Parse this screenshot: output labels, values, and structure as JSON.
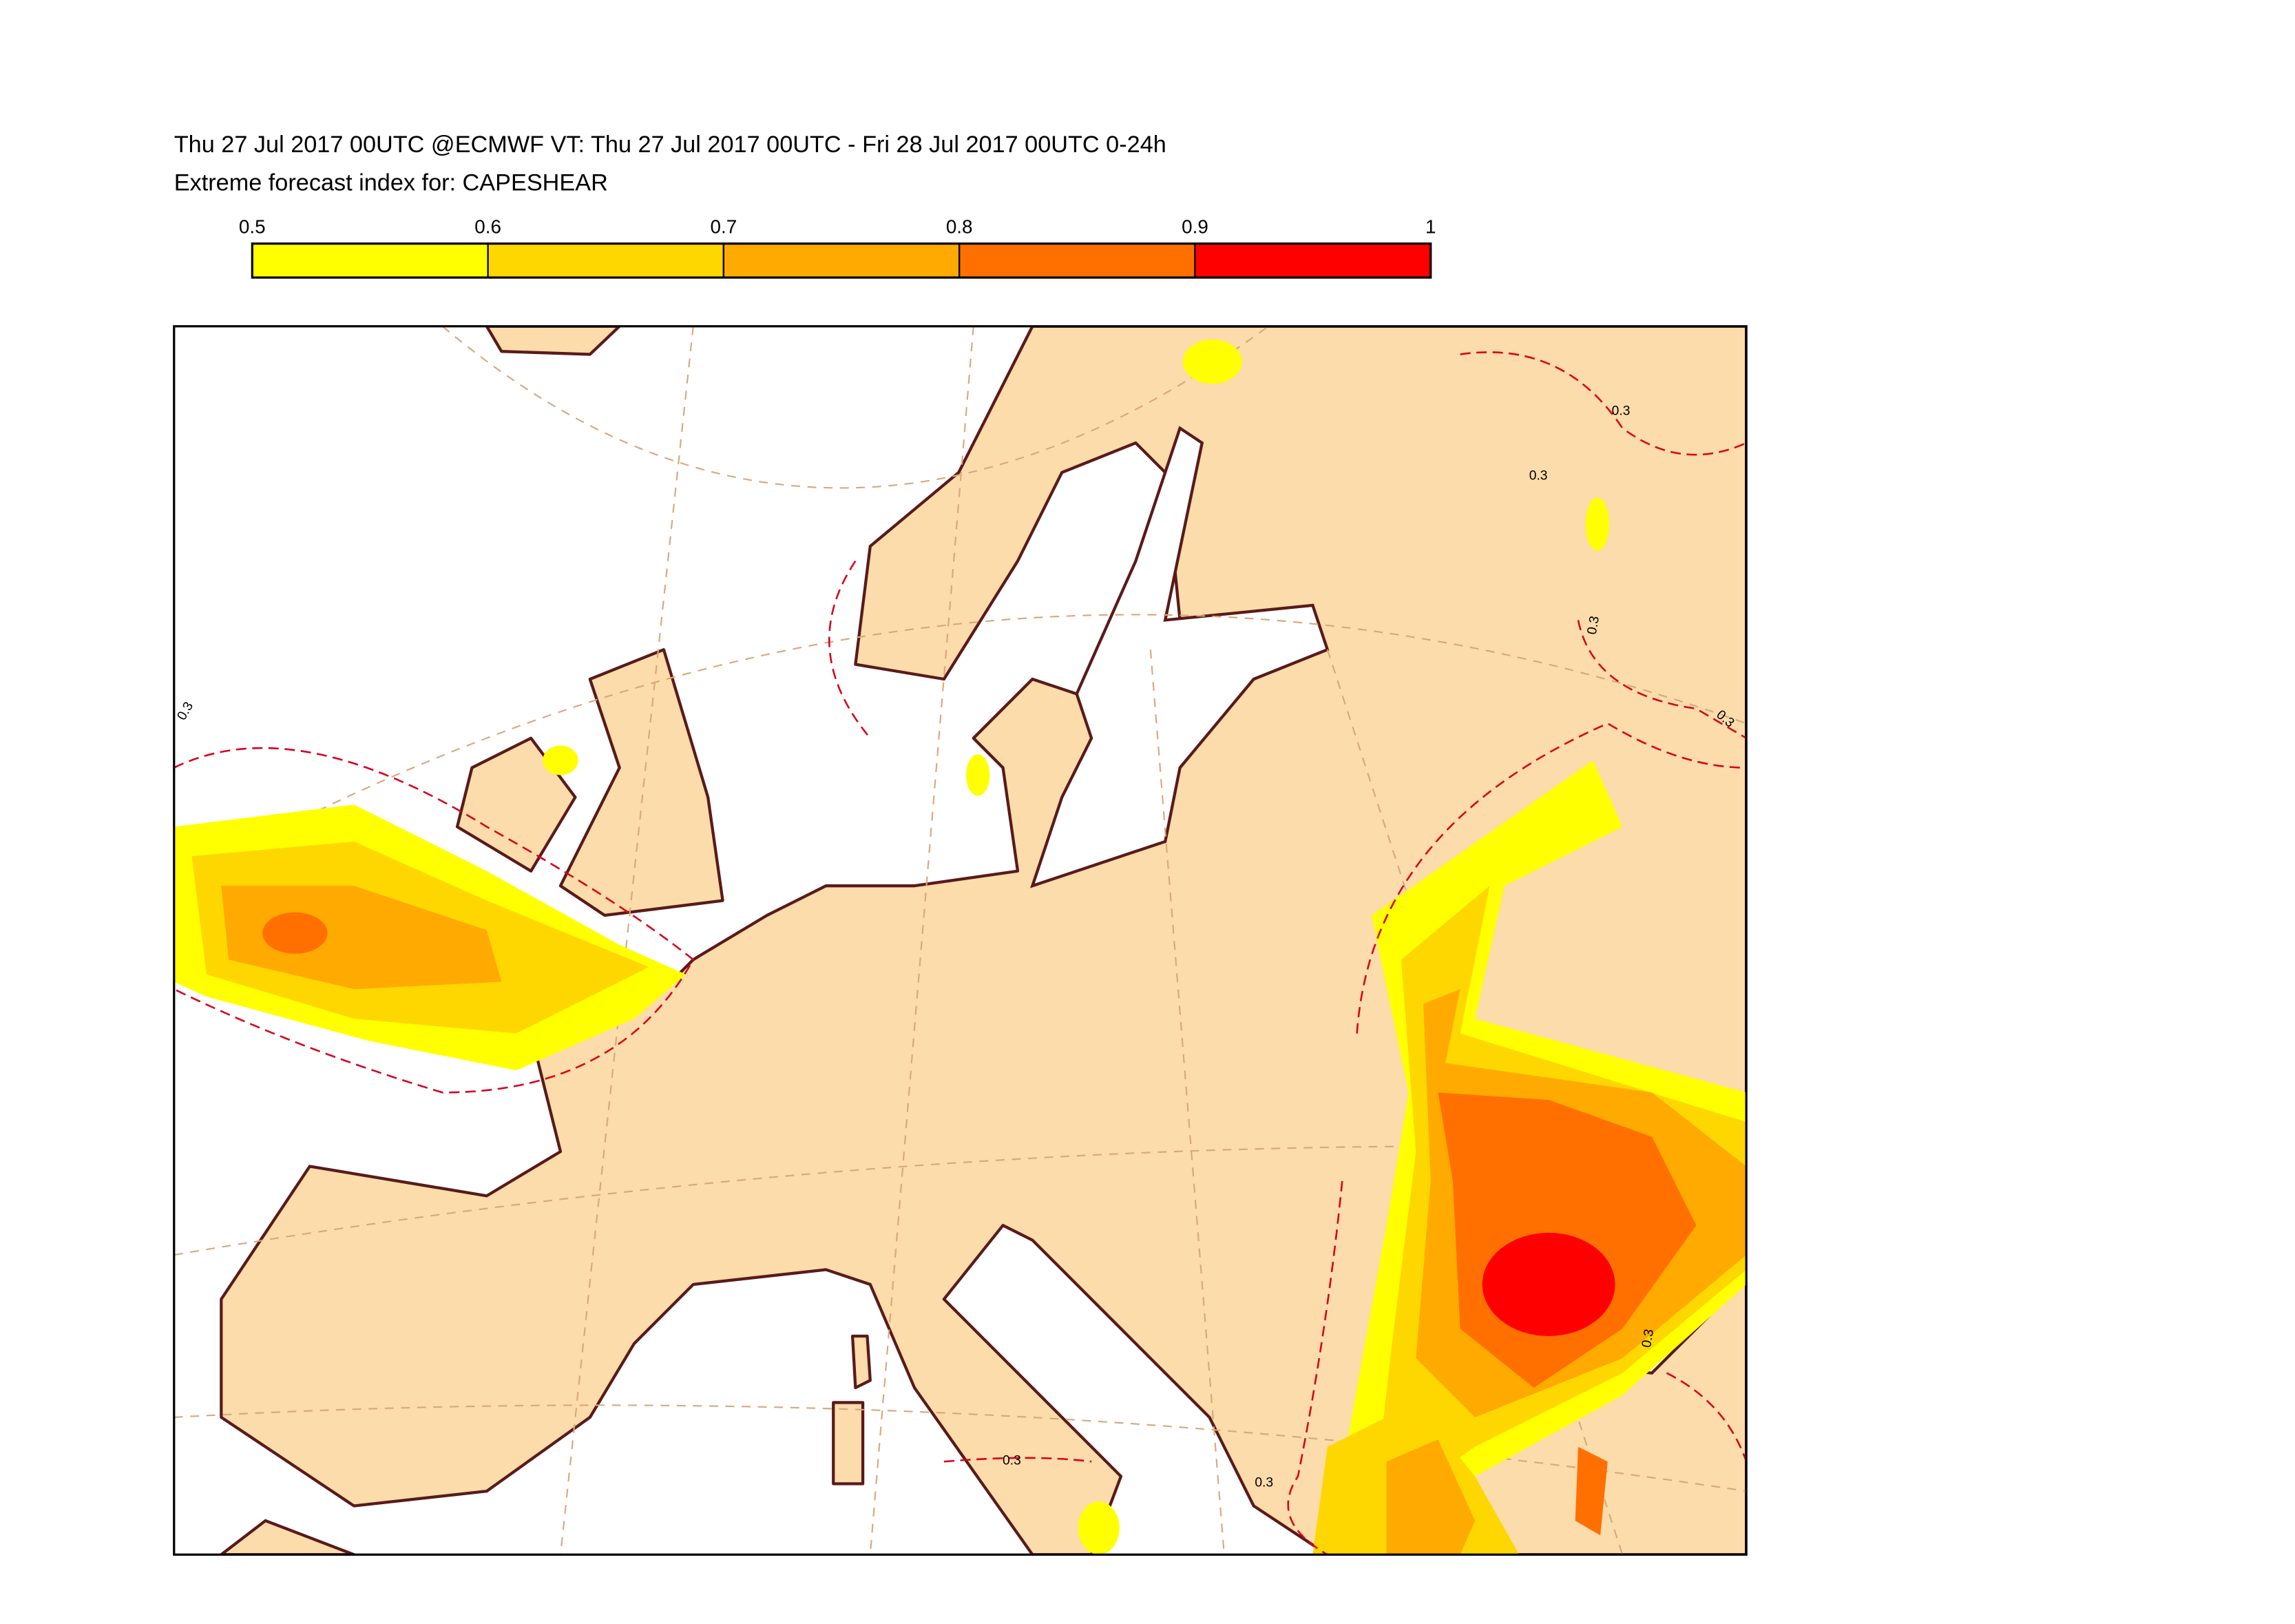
{
  "header": {
    "line1": "Thu 27 Jul 2017 00UTC @ECMWF VT: Thu 27 Jul 2017 00UTC - Fri 28 Jul 2017 00UTC  0-24h",
    "line2": "Extreme forecast index for: CAPESHEAR"
  },
  "legend": {
    "ticks": [
      0.5,
      0.6,
      0.7,
      0.8,
      0.9,
      1
    ],
    "colors": [
      "#ffff00",
      "#ffd700",
      "#ffaa00",
      "#ff7000",
      "#ff0000"
    ]
  },
  "map": {
    "contour_labels": [
      "0.3",
      "0.3",
      "0.3",
      "0.3",
      "0.3",
      "0.3",
      "0.3",
      "0.3"
    ]
  }
}
